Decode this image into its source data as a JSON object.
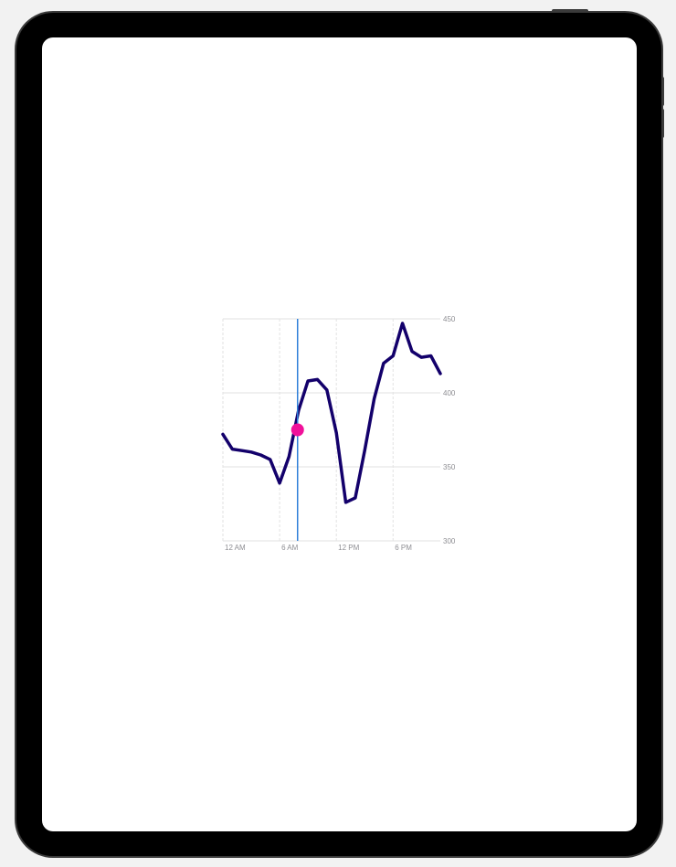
{
  "chart_data": {
    "type": "line",
    "x_unit": "hour",
    "xticks": [
      {
        "x": 0,
        "label": "12 AM"
      },
      {
        "x": 6,
        "label": "6 AM"
      },
      {
        "x": 12,
        "label": "12 PM"
      },
      {
        "x": 18,
        "label": "6 PM"
      }
    ],
    "yticks": [
      300,
      350,
      400,
      450
    ],
    "xlim": [
      0,
      23
    ],
    "ylim": [
      300,
      450
    ],
    "grid": true,
    "series": [
      {
        "x": [
          0,
          1,
          2,
          3,
          4,
          5,
          6,
          7,
          8,
          9,
          10,
          11,
          12,
          13,
          14,
          15,
          16,
          17,
          18,
          19,
          20,
          21,
          22,
          23
        ],
        "values": [
          372,
          362,
          361,
          360,
          358,
          355,
          339,
          357,
          388,
          408,
          409,
          402,
          373,
          326,
          329,
          361,
          396,
          420,
          425,
          447,
          428,
          424,
          425,
          413
        ]
      }
    ],
    "selection": {
      "x": 7.9,
      "value": 375
    }
  },
  "colors": {
    "line": "#13006b",
    "cursor": "#2f7fd9",
    "marker": "#f0119a",
    "grid": "#e2e2e2",
    "tick_text": "#8e8e93"
  }
}
